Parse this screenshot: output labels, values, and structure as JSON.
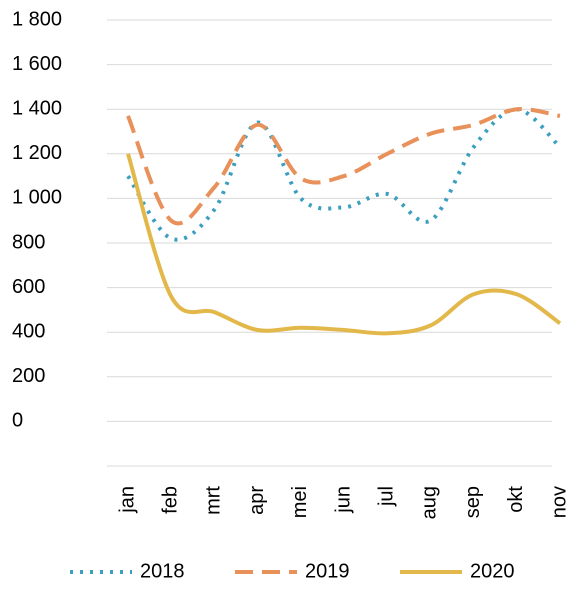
{
  "chart_data": {
    "type": "line",
    "categories": [
      "jan",
      "feb",
      "mrt",
      "apr",
      "mei",
      "jun",
      "jul",
      "aug",
      "sep",
      "okt",
      "nov"
    ],
    "series": [
      {
        "name": "2018",
        "color": "#3c9fc0",
        "dash": "dotted",
        "values": [
          1100,
          820,
          950,
          1340,
          1000,
          960,
          1020,
          900,
          1230,
          1400,
          1230
        ]
      },
      {
        "name": "2019",
        "color": "#e8915a",
        "dash": "dashed",
        "values": [
          1370,
          900,
          1050,
          1330,
          1090,
          1100,
          1200,
          1290,
          1330,
          1400,
          1370
        ]
      },
      {
        "name": "2020",
        "color": "#e3b84a",
        "dash": "solid",
        "values": [
          1200,
          560,
          490,
          410,
          420,
          410,
          395,
          430,
          570,
          570,
          440
        ]
      }
    ],
    "ylim": [
      -200,
      1800
    ],
    "yticks": [
      0,
      200,
      400,
      600,
      800,
      {
        "value": 1000,
        "label": "1 000"
      },
      {
        "value": 1200,
        "label": "1 200"
      },
      {
        "value": 1400,
        "label": "1 400"
      },
      {
        "value": 1600,
        "label": "1 600"
      },
      {
        "value": 1800,
        "label": "1 800"
      }
    ],
    "grid": true,
    "legend": "bottom"
  }
}
